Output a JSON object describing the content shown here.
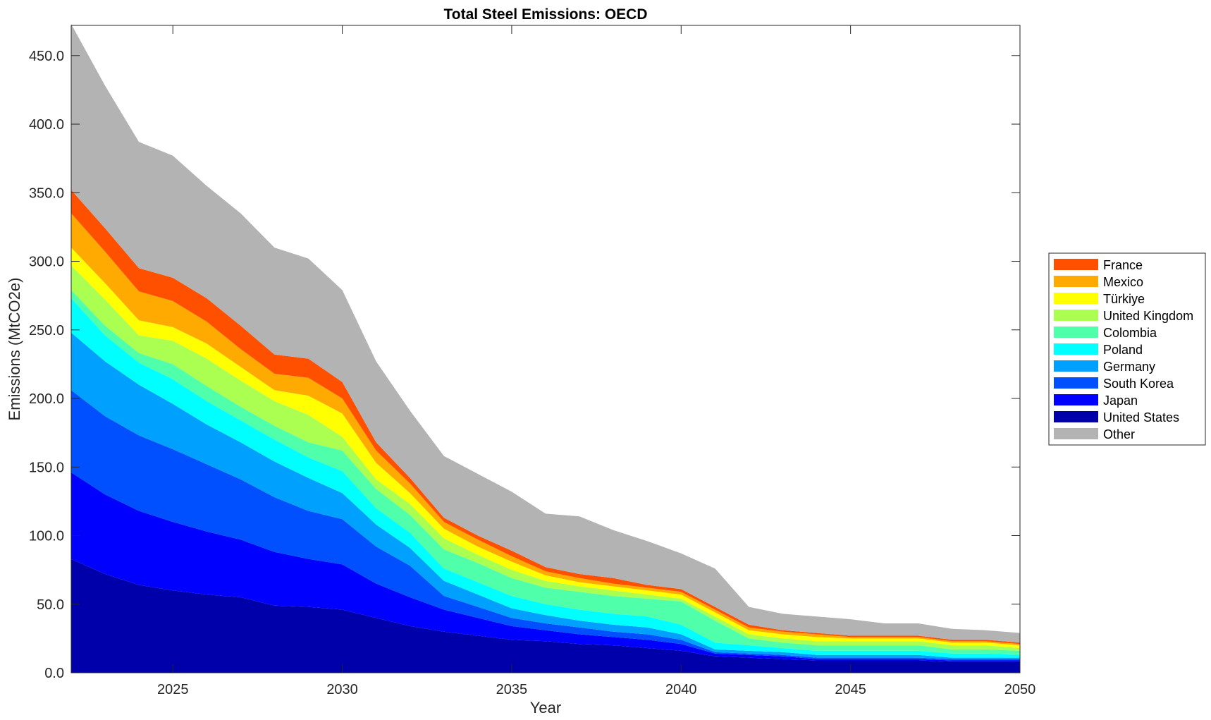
{
  "chart_data": {
    "type": "area",
    "stacked": true,
    "title": "Total Steel Emissions: OECD",
    "xlabel": "Year",
    "ylabel": "Emissions (MtCO2e)",
    "xlim": [
      2022,
      2050
    ],
    "ylim": [
      0,
      472
    ],
    "xticks": [
      2025,
      2030,
      2035,
      2040,
      2045,
      2050
    ],
    "yticks": [
      0,
      50,
      100,
      150,
      200,
      250,
      300,
      350,
      400,
      450
    ],
    "ytick_labels": [
      "0.0",
      "50.0",
      "100.0",
      "150.0",
      "200.0",
      "250.0",
      "300.0",
      "350.0",
      "400.0",
      "450.0"
    ],
    "x": [
      2022,
      2023,
      2024,
      2025,
      2026,
      2027,
      2028,
      2029,
      2030,
      2031,
      2032,
      2033,
      2034,
      2035,
      2036,
      2037,
      2038,
      2039,
      2040,
      2041,
      2042,
      2043,
      2044,
      2045,
      2046,
      2047,
      2048,
      2049,
      2050
    ],
    "series": [
      {
        "name": "United States",
        "color": "#0000aa",
        "values": [
          83,
          72,
          64,
          60,
          57,
          55,
          49,
          48,
          46,
          40,
          34,
          30,
          27,
          24,
          23,
          21,
          20,
          18,
          16,
          12,
          11,
          10,
          9,
          9,
          9,
          9,
          8,
          8,
          8
        ]
      },
      {
        "name": "Japan",
        "color": "#0000ff",
        "values": [
          63,
          58,
          54,
          50,
          46,
          42,
          39,
          35,
          33,
          25,
          21,
          16,
          13,
          10,
          8,
          7,
          6,
          6,
          5,
          2,
          2,
          2,
          1,
          1,
          1,
          1,
          1,
          1,
          1
        ]
      },
      {
        "name": "South Korea",
        "color": "#0050ff",
        "values": [
          60,
          57,
          55,
          53,
          49,
          44,
          40,
          35,
          33,
          27,
          23,
          10,
          8,
          6,
          5,
          5,
          4,
          4,
          3,
          1,
          1,
          1,
          1,
          1,
          1,
          1,
          1,
          1,
          1
        ]
      },
      {
        "name": "Germany",
        "color": "#00a0ff",
        "values": [
          42,
          40,
          37,
          33,
          29,
          27,
          26,
          24,
          19,
          16,
          13,
          11,
          9,
          7,
          6,
          5,
          5,
          5,
          4,
          2,
          2,
          2,
          2,
          2,
          2,
          2,
          1,
          1,
          1
        ]
      },
      {
        "name": "Poland",
        "color": "#00ffff",
        "values": [
          25,
          19,
          16,
          18,
          17,
          16,
          16,
          15,
          16,
          12,
          11,
          9,
          9,
          9,
          8,
          8,
          8,
          8,
          7,
          5,
          4,
          3,
          3,
          3,
          3,
          3,
          3,
          3,
          2
        ]
      },
      {
        "name": "Colombia",
        "color": "#50ffaa",
        "values": [
          6,
          7,
          7,
          11,
          11,
          10,
          10,
          11,
          15,
          14,
          13,
          14,
          14,
          13,
          12,
          13,
          13,
          13,
          17,
          16,
          5,
          4,
          4,
          4,
          4,
          4,
          3,
          3,
          3
        ]
      },
      {
        "name": "United Kingdom",
        "color": "#aaff50",
        "values": [
          18,
          19,
          13,
          17,
          20,
          19,
          18,
          20,
          10,
          7,
          8,
          8,
          6,
          6,
          5,
          4,
          4,
          3,
          2,
          3,
          3,
          3,
          3,
          3,
          3,
          3,
          3,
          3,
          2
        ]
      },
      {
        "name": "Türkiye",
        "color": "#ffff00",
        "values": [
          13,
          12,
          11,
          10,
          11,
          10,
          8,
          14,
          17,
          12,
          8,
          7,
          6,
          6,
          4,
          3,
          3,
          3,
          3,
          3,
          3,
          3,
          3,
          2,
          2,
          2,
          2,
          2,
          2
        ]
      },
      {
        "name": "Mexico",
        "color": "#ffaa00",
        "values": [
          25,
          23,
          21,
          19,
          16,
          13,
          12,
          13,
          11,
          9,
          7,
          5,
          5,
          4,
          3,
          3,
          2,
          2,
          2,
          2,
          2,
          2,
          2,
          1,
          1,
          1,
          1,
          1,
          1
        ]
      },
      {
        "name": "France",
        "color": "#ff5000",
        "values": [
          17,
          17,
          17,
          17,
          17,
          17,
          14,
          14,
          12,
          6,
          4,
          3,
          3,
          4,
          3,
          3,
          4,
          2,
          2,
          2,
          2,
          1,
          1,
          1,
          1,
          1,
          1,
          1,
          1
        ]
      },
      {
        "name": "Other",
        "color": "#b3b3b3",
        "values": [
          121,
          104,
          92,
          89,
          82,
          82,
          78,
          73,
          67,
          59,
          49,
          45,
          45,
          43,
          39,
          42,
          35,
          32,
          26,
          28,
          13,
          12,
          12,
          12,
          9,
          9,
          8,
          7,
          7
        ]
      }
    ],
    "legend_order": [
      "France",
      "Mexico",
      "Türkiye",
      "United Kingdom",
      "Colombia",
      "Poland",
      "Germany",
      "South Korea",
      "Japan",
      "United States",
      "Other"
    ],
    "legend_position": "outside-right",
    "grid": false
  }
}
